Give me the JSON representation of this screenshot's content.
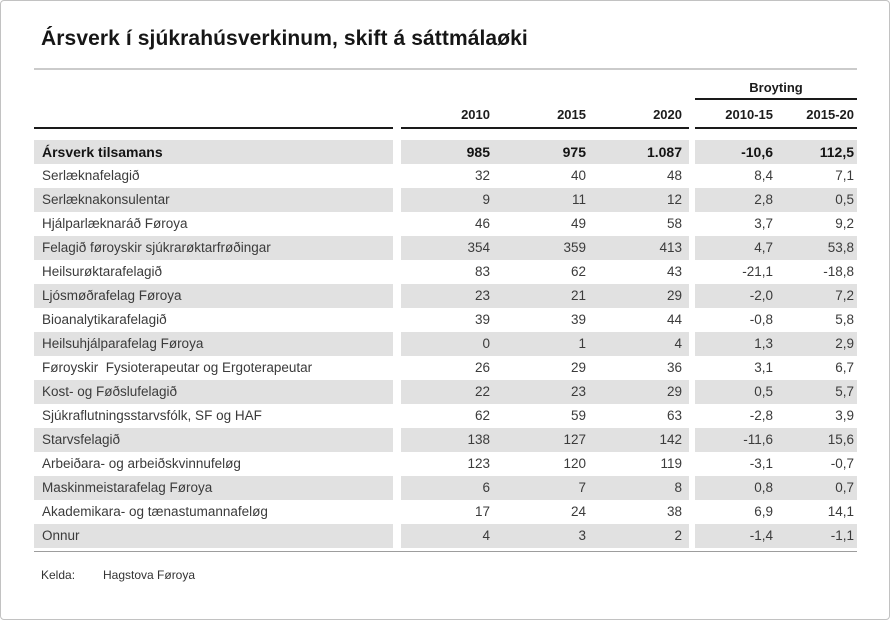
{
  "title": "Ársverk í sjúkrahúsverkinum, skift á sáttmálaøki",
  "table": {
    "group_header": "Broyting",
    "columns": [
      "2010",
      "2015",
      "2020",
      "2010-15",
      "2015-20"
    ],
    "total_row": {
      "label": "Ársverk tilsamans",
      "values": [
        "985",
        "975",
        "1.087",
        "-10,6",
        "112,5"
      ]
    },
    "rows": [
      {
        "label": "Serlæknafelagið",
        "values": [
          "32",
          "40",
          "48",
          "8,4",
          "7,1"
        ]
      },
      {
        "label": "Serlæknakonsulentar",
        "values": [
          "9",
          "11",
          "12",
          "2,8",
          "0,5"
        ]
      },
      {
        "label": "Hjálparlæknaráð Føroya",
        "values": [
          "46",
          "49",
          "58",
          "3,7",
          "9,2"
        ]
      },
      {
        "label": "Felagið føroyskir sjúkrarøktarfrøðingar",
        "values": [
          "354",
          "359",
          "413",
          "4,7",
          "53,8"
        ]
      },
      {
        "label": "Heilsurøktarafelagið",
        "values": [
          "83",
          "62",
          "43",
          "-21,1",
          "-18,8"
        ]
      },
      {
        "label": "Ljósmøðrafelag Føroya",
        "values": [
          "23",
          "21",
          "29",
          "-2,0",
          "7,2"
        ]
      },
      {
        "label": "Bioanalytikarafelagið",
        "values": [
          "39",
          "39",
          "44",
          "-0,8",
          "5,8"
        ]
      },
      {
        "label": "Heilsuhjálparafelag Føroya",
        "values": [
          "0",
          "1",
          "4",
          "1,3",
          "2,9"
        ]
      },
      {
        "label": "Føroyskir  Fysioterapeutar og Ergoterapeutar",
        "values": [
          "26",
          "29",
          "36",
          "3,1",
          "6,7"
        ]
      },
      {
        "label": "Kost- og Føðslufelagið",
        "values": [
          "22",
          "23",
          "29",
          "0,5",
          "5,7"
        ]
      },
      {
        "label": "Sjúkraflutningsstarvsfólk, SF og HAF",
        "values": [
          "62",
          "59",
          "63",
          "-2,8",
          "3,9"
        ]
      },
      {
        "label": "Starvsfelagið",
        "values": [
          "138",
          "127",
          "142",
          "-11,6",
          "15,6"
        ]
      },
      {
        "label": "Arbeiðara- og arbeiðskvinnufeløg",
        "values": [
          "123",
          "120",
          "119",
          "-3,1",
          "-0,7"
        ]
      },
      {
        "label": "Maskinmeistarafelag Føroya",
        "values": [
          "6",
          "7",
          "8",
          "0,8",
          "0,7"
        ]
      },
      {
        "label": "Akademikara- og tænastumannafeløg",
        "values": [
          "17",
          "24",
          "38",
          "6,9",
          "14,1"
        ]
      },
      {
        "label": "Onnur",
        "values": [
          "4",
          "3",
          "2",
          "-1,4",
          "-1,1"
        ]
      }
    ]
  },
  "footer": {
    "source_label": "Kelda:",
    "source_value": "Hagstova Føroya"
  },
  "colors": {
    "stripe": "#e1e1e1",
    "header_rule": "#1a1a1a",
    "title_divider": "#cbcbcb",
    "bottom_divider": "#9d9d9d",
    "text": "#3b3b3b",
    "text_strong": "#141414"
  },
  "chart_data": {
    "type": "table",
    "title": "Ársverk í sjúkrahúsverkinum, skift á sáttmálaøki",
    "columns": [
      "",
      "2010",
      "2015",
      "2020",
      "Broyting 2010-15",
      "Broyting 2015-20"
    ],
    "rows": [
      [
        "Ársverk tilsamans",
        985,
        975,
        1087,
        -10.6,
        112.5
      ],
      [
        "Serlæknafelagið",
        32,
        40,
        48,
        8.4,
        7.1
      ],
      [
        "Serlæknakonsulentar",
        9,
        11,
        12,
        2.8,
        0.5
      ],
      [
        "Hjálparlæknaráð Føroya",
        46,
        49,
        58,
        3.7,
        9.2
      ],
      [
        "Felagið føroyskir sjúkrarøktarfrøðingar",
        354,
        359,
        413,
        4.7,
        53.8
      ],
      [
        "Heilsurøktarafelagið",
        83,
        62,
        43,
        -21.1,
        -18.8
      ],
      [
        "Ljósmøðrafelag Føroya",
        23,
        21,
        29,
        -2.0,
        7.2
      ],
      [
        "Bioanalytikarafelagið",
        39,
        39,
        44,
        -0.8,
        5.8
      ],
      [
        "Heilsuhjálparafelag Føroya",
        0,
        1,
        4,
        1.3,
        2.9
      ],
      [
        "Føroyskir Fysioterapeutar og Ergoterapeutar",
        26,
        29,
        36,
        3.1,
        6.7
      ],
      [
        "Kost- og Føðslufelagið",
        22,
        23,
        29,
        0.5,
        5.7
      ],
      [
        "Sjúkraflutningsstarvsfólk, SF og HAF",
        62,
        59,
        63,
        -2.8,
        3.9
      ],
      [
        "Starvsfelagið",
        138,
        127,
        142,
        -11.6,
        15.6
      ],
      [
        "Arbeiðara- og arbeiðskvinnufeløg",
        123,
        120,
        119,
        -3.1,
        -0.7
      ],
      [
        "Maskinmeistarafelag Føroya",
        6,
        7,
        8,
        0.8,
        0.7
      ],
      [
        "Akademikara- og tænastumannafeløg",
        17,
        24,
        38,
        6.9,
        14.1
      ],
      [
        "Onnur",
        4,
        3,
        2,
        -1.4,
        -1.1
      ]
    ],
    "source": "Hagstova Føroya"
  }
}
